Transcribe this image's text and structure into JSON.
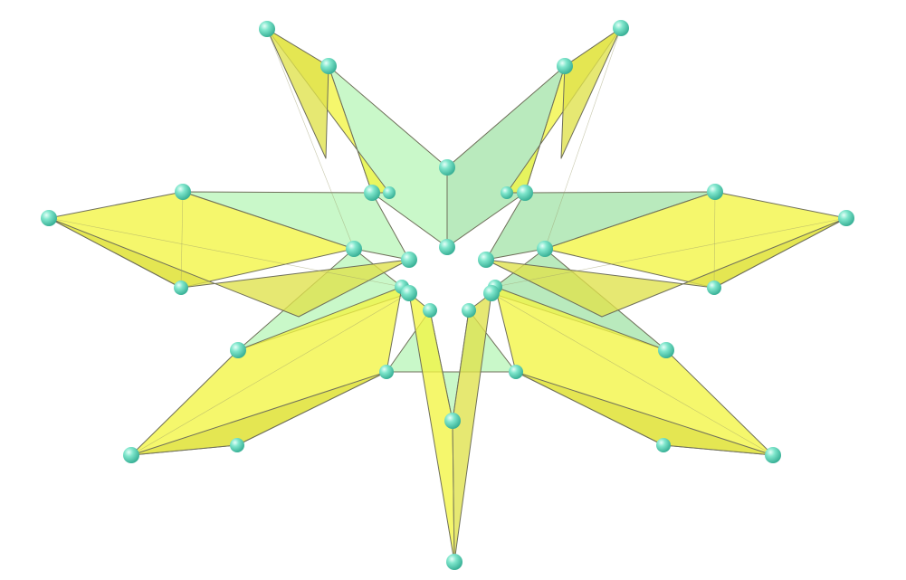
{
  "figure": {
    "kind": "polyhedron-render",
    "colors": {
      "background": "#ffffff",
      "outer_face_light": "#f2f542",
      "outer_face_dark": "#dfe24a",
      "inner_face_light": "#b4f5b4",
      "inner_face_dark": "#9ee2a4",
      "vertex_sphere": "#5fd8be",
      "vertex_sphere_highlight": "#d8fff4",
      "edge": "#6f6f5a"
    },
    "spike_count": 7,
    "vertex_style": "sphere"
  }
}
